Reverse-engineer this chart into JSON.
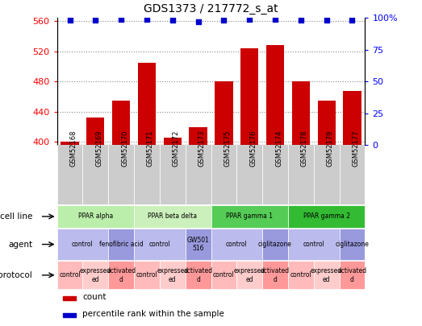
{
  "title": "GDS1373 / 217772_s_at",
  "samples": [
    "GSM52168",
    "GSM52169",
    "GSM52170",
    "GSM52171",
    "GSM52172",
    "GSM52173",
    "GSM52175",
    "GSM52176",
    "GSM52174",
    "GSM52178",
    "GSM52179",
    "GSM52177"
  ],
  "bar_values": [
    401,
    432,
    455,
    505,
    406,
    420,
    480,
    524,
    528,
    480,
    455,
    468
  ],
  "percentile_values": [
    98,
    98,
    99,
    99,
    98,
    97,
    98,
    99,
    99,
    98,
    98,
    98
  ],
  "bar_color": "#cc0000",
  "dot_color": "#0000cc",
  "ylim_left": [
    396,
    564
  ],
  "ylim_right": [
    0,
    100
  ],
  "yticks_left": [
    400,
    440,
    480,
    520,
    560
  ],
  "yticks_right": [
    0,
    25,
    50,
    75,
    100
  ],
  "grid_color": "#888888",
  "xticklabel_bg": "#cccccc",
  "cell_line_row": {
    "label": "cell line",
    "groups": [
      {
        "text": "PPAR alpha",
        "span": [
          0,
          3
        ],
        "color": "#bbeeaa"
      },
      {
        "text": "PPAR beta delta",
        "span": [
          3,
          6
        ],
        "color": "#ccf0bb"
      },
      {
        "text": "PPAR gamma 1",
        "span": [
          6,
          9
        ],
        "color": "#55cc55"
      },
      {
        "text": "PPAR gamma 2",
        "span": [
          9,
          12
        ],
        "color": "#33bb33"
      }
    ]
  },
  "agent_row": {
    "label": "agent",
    "groups": [
      {
        "text": "control",
        "span": [
          0,
          2
        ],
        "color": "#bbbbee"
      },
      {
        "text": "fenofibric acid",
        "span": [
          2,
          3
        ],
        "color": "#9999dd"
      },
      {
        "text": "control",
        "span": [
          3,
          5
        ],
        "color": "#bbbbee"
      },
      {
        "text": "GW501\n516",
        "span": [
          5,
          6
        ],
        "color": "#9999dd"
      },
      {
        "text": "control",
        "span": [
          6,
          8
        ],
        "color": "#bbbbee"
      },
      {
        "text": "ciglitazone",
        "span": [
          8,
          9
        ],
        "color": "#9999dd"
      },
      {
        "text": "control",
        "span": [
          9,
          11
        ],
        "color": "#bbbbee"
      },
      {
        "text": "ciglitazone",
        "span": [
          11,
          12
        ],
        "color": "#9999dd"
      }
    ]
  },
  "protocol_row": {
    "label": "protocol",
    "groups": [
      {
        "text": "control",
        "span": [
          0,
          1
        ],
        "color": "#ffbbbb"
      },
      {
        "text": "expressed\ned",
        "span": [
          1,
          2
        ],
        "color": "#ffcccc"
      },
      {
        "text": "activated\nd",
        "span": [
          2,
          3
        ],
        "color": "#ff9999"
      },
      {
        "text": "control",
        "span": [
          3,
          4
        ],
        "color": "#ffbbbb"
      },
      {
        "text": "expressed\ned",
        "span": [
          4,
          5
        ],
        "color": "#ffcccc"
      },
      {
        "text": "activated\nd",
        "span": [
          5,
          6
        ],
        "color": "#ff9999"
      },
      {
        "text": "control",
        "span": [
          6,
          7
        ],
        "color": "#ffbbbb"
      },
      {
        "text": "expressed\ned",
        "span": [
          7,
          8
        ],
        "color": "#ffcccc"
      },
      {
        "text": "activated\nd",
        "span": [
          8,
          9
        ],
        "color": "#ff9999"
      },
      {
        "text": "control",
        "span": [
          9,
          10
        ],
        "color": "#ffbbbb"
      },
      {
        "text": "expressed\ned",
        "span": [
          10,
          11
        ],
        "color": "#ffcccc"
      },
      {
        "text": "activated\nd",
        "span": [
          11,
          12
        ],
        "color": "#ff9999"
      }
    ]
  },
  "legend_items": [
    {
      "label": "count",
      "color": "#cc0000"
    },
    {
      "label": "percentile rank within the sample",
      "color": "#0000cc"
    }
  ]
}
